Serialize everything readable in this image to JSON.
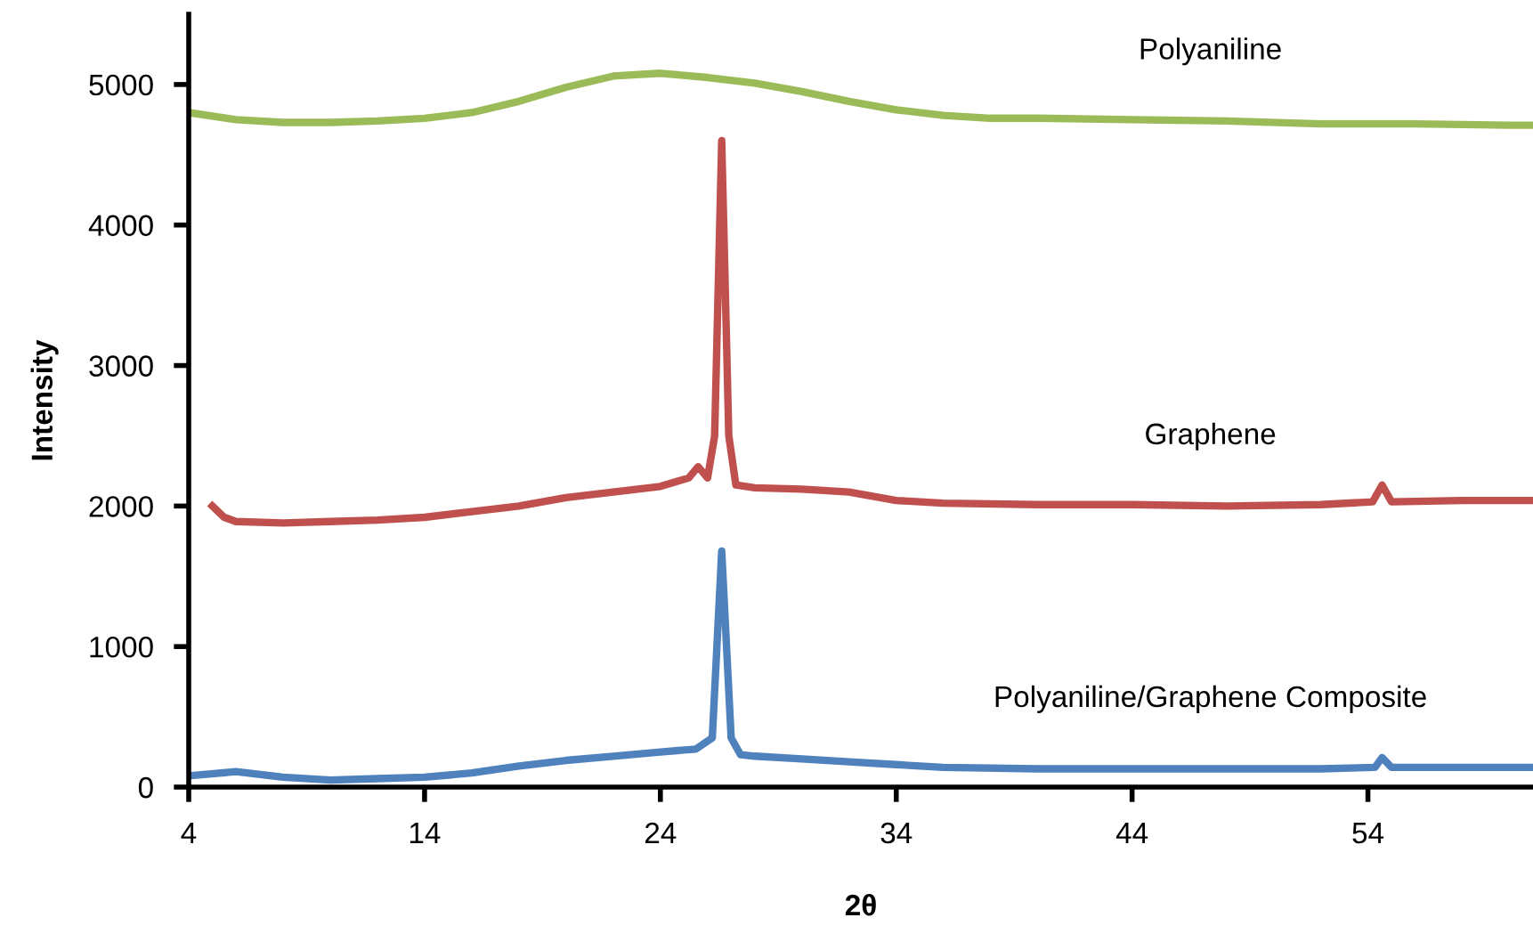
{
  "chart_data": {
    "type": "line",
    "xlabel": "2θ",
    "ylabel": "Intensity",
    "xlim": [
      4,
      61
    ],
    "ylim": [
      0,
      5500
    ],
    "xticks": [
      4,
      14,
      24,
      34,
      44,
      54
    ],
    "yticks": [
      0,
      1000,
      2000,
      3000,
      4000,
      5000
    ],
    "grid": false,
    "legend": false,
    "marker": "none",
    "line_style": "solid",
    "series": [
      {
        "name": "Polyaniline",
        "color": "#9bbb59",
        "x": [
          4,
          6,
          8,
          10,
          12,
          14,
          16,
          18,
          20,
          22,
          24,
          26,
          28,
          30,
          32,
          34,
          36,
          38,
          40,
          44,
          48,
          52,
          56,
          60,
          61
        ],
        "values": [
          4800,
          4750,
          4730,
          4730,
          4740,
          4760,
          4800,
          4880,
          4980,
          5060,
          5080,
          5050,
          5010,
          4950,
          4880,
          4820,
          4780,
          4760,
          4760,
          4750,
          4740,
          4720,
          4720,
          4710,
          4710
        ]
      },
      {
        "name": "Graphene",
        "color": "#c0504d",
        "x": [
          5,
          5.5,
          6,
          8,
          10,
          12,
          14,
          16,
          18,
          20,
          22,
          24,
          25.2,
          25.6,
          26,
          26.3,
          26.6,
          26.9,
          27.2,
          28,
          30,
          32,
          34,
          36,
          40,
          44,
          48,
          52,
          54.2,
          54.6,
          55,
          58,
          61
        ],
        "values": [
          2000,
          1920,
          1890,
          1880,
          1890,
          1900,
          1920,
          1960,
          2000,
          2060,
          2100,
          2140,
          2200,
          2280,
          2200,
          2500,
          4600,
          2500,
          2150,
          2130,
          2120,
          2100,
          2040,
          2020,
          2010,
          2010,
          2000,
          2010,
          2030,
          2150,
          2030,
          2040,
          2040
        ]
      },
      {
        "name": "Polyaniline/Graphene Composite",
        "color": "#4f81bd",
        "x": [
          4,
          6,
          8,
          10,
          12,
          14,
          16,
          18,
          20,
          22,
          24,
          25.5,
          26.2,
          26.6,
          27,
          27.4,
          28,
          30,
          32,
          34,
          36,
          40,
          44,
          48,
          52,
          54.3,
          54.6,
          55,
          58,
          61
        ],
        "values": [
          80,
          110,
          70,
          50,
          60,
          70,
          100,
          150,
          190,
          220,
          250,
          270,
          350,
          1680,
          350,
          230,
          220,
          200,
          180,
          160,
          140,
          130,
          130,
          130,
          130,
          140,
          210,
          140,
          140,
          140
        ]
      }
    ]
  }
}
